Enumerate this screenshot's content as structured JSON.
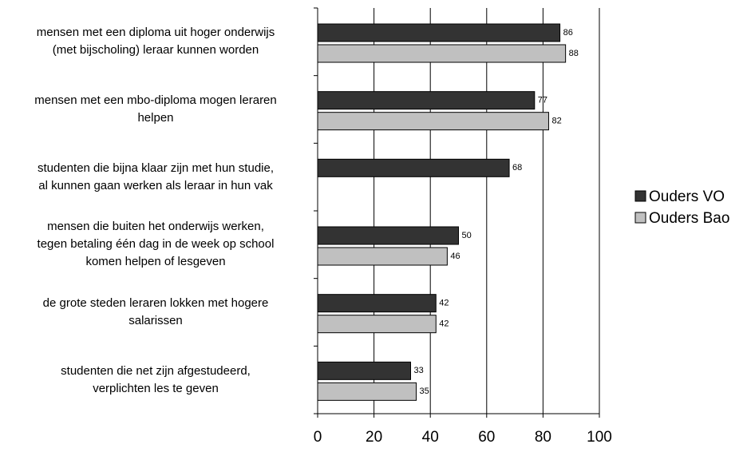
{
  "chart_data": {
    "type": "bar",
    "orientation": "horizontal",
    "categories": [
      "mensen met een diploma uit hoger onderwijs\n(met bijscholing) leraar kunnen worden",
      "mensen met een mbo-diploma mogen leraren\nhelpen",
      "studenten die bijna klaar zijn met hun studie,\nal kunnen gaan werken als leraar in hun vak",
      "mensen die buiten het onderwijs werken,\ntegen betaling één dag in de week op school\nkomen helpen of lesgeven",
      "de grote steden leraren lokken met hogere\nsalarissen",
      "studenten die net zijn afgestudeerd,\nverplichten les te geven"
    ],
    "series": [
      {
        "name": "Ouders VO",
        "color": "#333333",
        "values": [
          86,
          77,
          68,
          50,
          42,
          33
        ]
      },
      {
        "name": "Ouders Bao",
        "color": "#c0c0c0",
        "values": [
          88,
          82,
          null,
          46,
          42,
          35
        ]
      }
    ],
    "xlim": [
      0,
      100
    ],
    "xticks": [
      0,
      20,
      40,
      60,
      80,
      100
    ],
    "grid": true,
    "legend": "right"
  }
}
